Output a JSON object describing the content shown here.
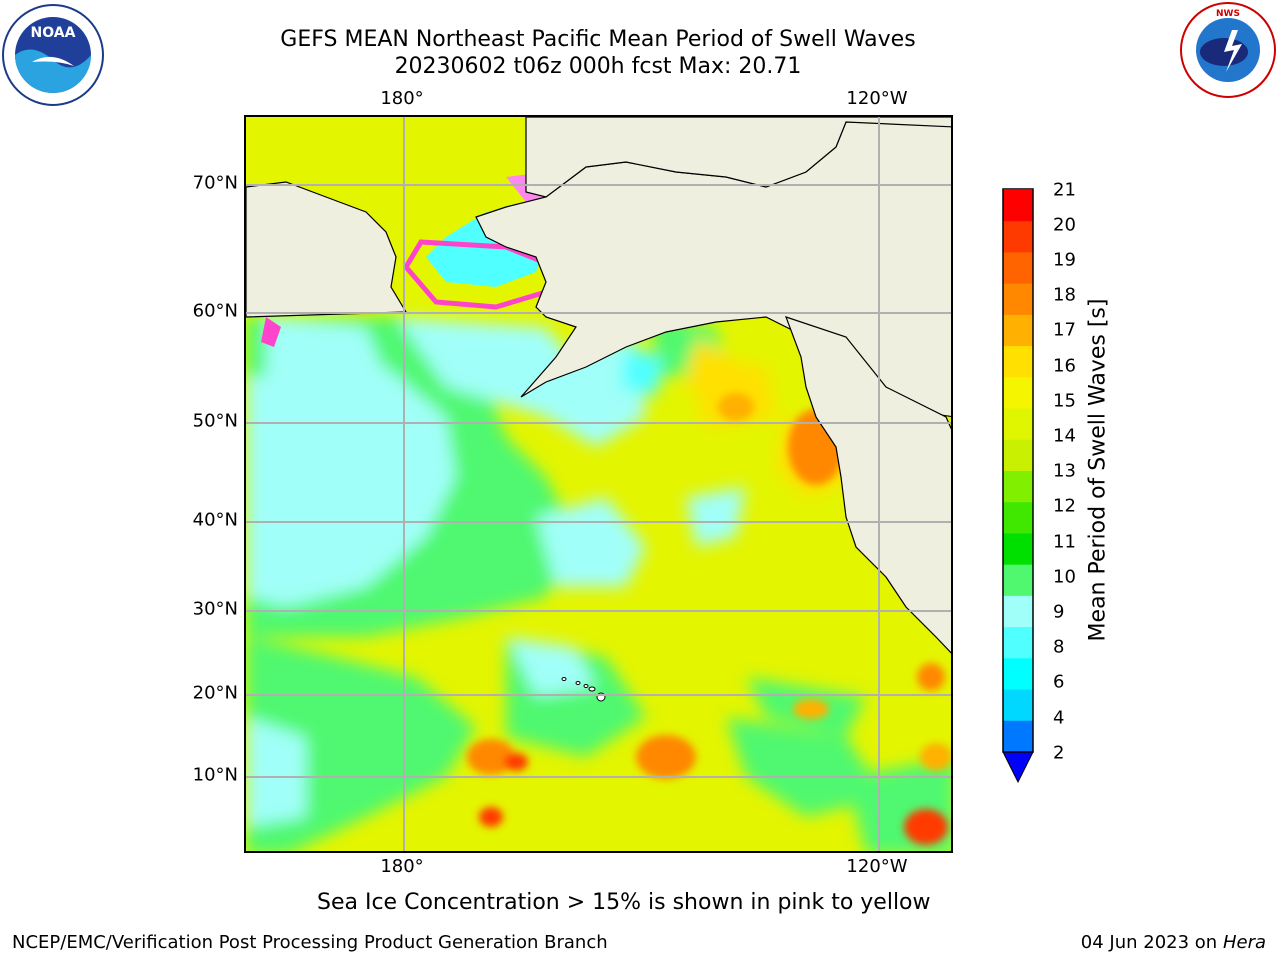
{
  "header": {
    "title_line1": "GEFS MEAN Northeast Pacific Mean Period of Swell Waves",
    "title_line2": "20230602 t06z 000h fcst   Max: 20.71"
  },
  "logos": {
    "noaa": {
      "icon": "noaa-logo-icon",
      "text": "NOAA",
      "ring_text": "NATIONAL OCEANIC AND ATMOSPHERIC ADMINISTRATION · U.S. DEPARTMENT OF COMMERCE"
    },
    "nws": {
      "icon": "nws-logo-icon",
      "ring_text": "NATIONAL WEATHER SERVICE"
    }
  },
  "map": {
    "lon_labels_top": [
      "180°",
      "120°W"
    ],
    "lon_labels_bottom": [
      "180°",
      "120°W"
    ],
    "lat_labels": [
      "70°N",
      "60°N",
      "50°N",
      "40°N",
      "30°N",
      "20°N",
      "10°N"
    ],
    "land_color": "#efefdf",
    "grid_color": "#b0b0b0"
  },
  "colorbar": {
    "label": "Mean Period of Swell Waves [s]",
    "ticks": [
      "21",
      "20",
      "19",
      "18",
      "17",
      "16",
      "15",
      "14",
      "13",
      "12",
      "11",
      "10",
      "9",
      "8",
      "6",
      "4",
      "2"
    ],
    "colors": [
      "#ff0000",
      "#ff3a00",
      "#ff6400",
      "#ff8800",
      "#ffb000",
      "#ffe000",
      "#f5f500",
      "#e0f500",
      "#c8f000",
      "#80f000",
      "#40e800",
      "#00e000",
      "#50f870",
      "#a0fff8",
      "#50ffff",
      "#00ffff",
      "#00d8ff",
      "#0078ff"
    ],
    "extend_color": "#0000ff"
  },
  "footer": {
    "ice_note": "Sea Ice Concentration > 15% is shown in pink to yellow",
    "credit": "NCEP/EMC/Verification Post Processing Product Generation Branch",
    "date_prefix": "04 Jun 2023 on",
    "date_machine": "Hera"
  }
}
